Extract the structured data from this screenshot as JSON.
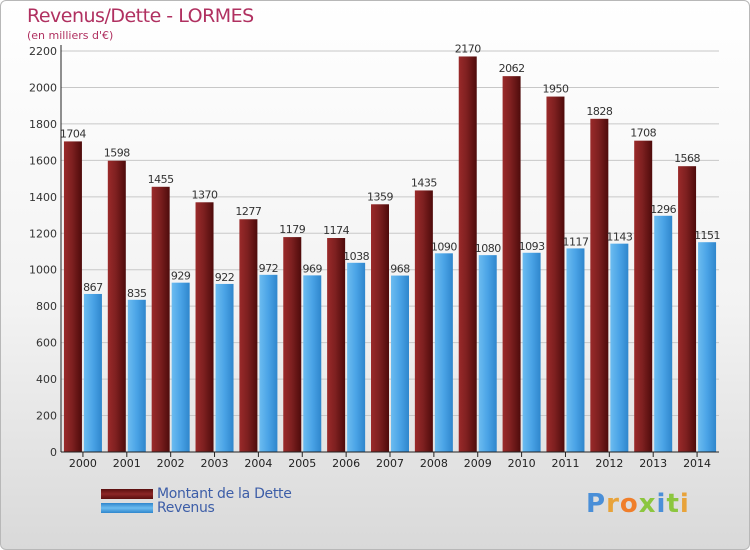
{
  "header": {
    "title": "Revenus/Dette - LORMES",
    "subtitle": "(en milliers d'€)"
  },
  "legend": {
    "dette_label": "Montant de la Dette",
    "revenus_label": "Revenus"
  },
  "logo": {
    "text": "Proxiti"
  },
  "colors": {
    "dette": "#7a1c1c",
    "revenus": "#4aa3e6",
    "title": "#b03060",
    "legend_text": "#3d5ea8"
  },
  "chart_data": {
    "type": "bar",
    "title": "Revenus/Dette - LORMES",
    "subtitle": "(en milliers d'€)",
    "categories": [
      "2000",
      "2001",
      "2002",
      "2003",
      "2004",
      "2005",
      "2006",
      "2007",
      "2008",
      "2009",
      "2010",
      "2011",
      "2012",
      "2013",
      "2014"
    ],
    "series": [
      {
        "name": "Montant de la Dette",
        "values": [
          1704,
          1598,
          1455,
          1370,
          1277,
          1179,
          1174,
          1359,
          1435,
          2170,
          2062,
          1950,
          1828,
          1708,
          1568
        ]
      },
      {
        "name": "Revenus",
        "values": [
          867,
          835,
          929,
          922,
          972,
          969,
          1038,
          968,
          1090,
          1080,
          1093,
          1117,
          1143,
          1296,
          1151
        ]
      }
    ],
    "ylim": [
      0,
      2200
    ],
    "yticks": [
      0,
      200,
      400,
      600,
      800,
      1000,
      1200,
      1400,
      1600,
      1800,
      2000,
      2200
    ],
    "grid": true,
    "legend_position": "bottom-left"
  }
}
